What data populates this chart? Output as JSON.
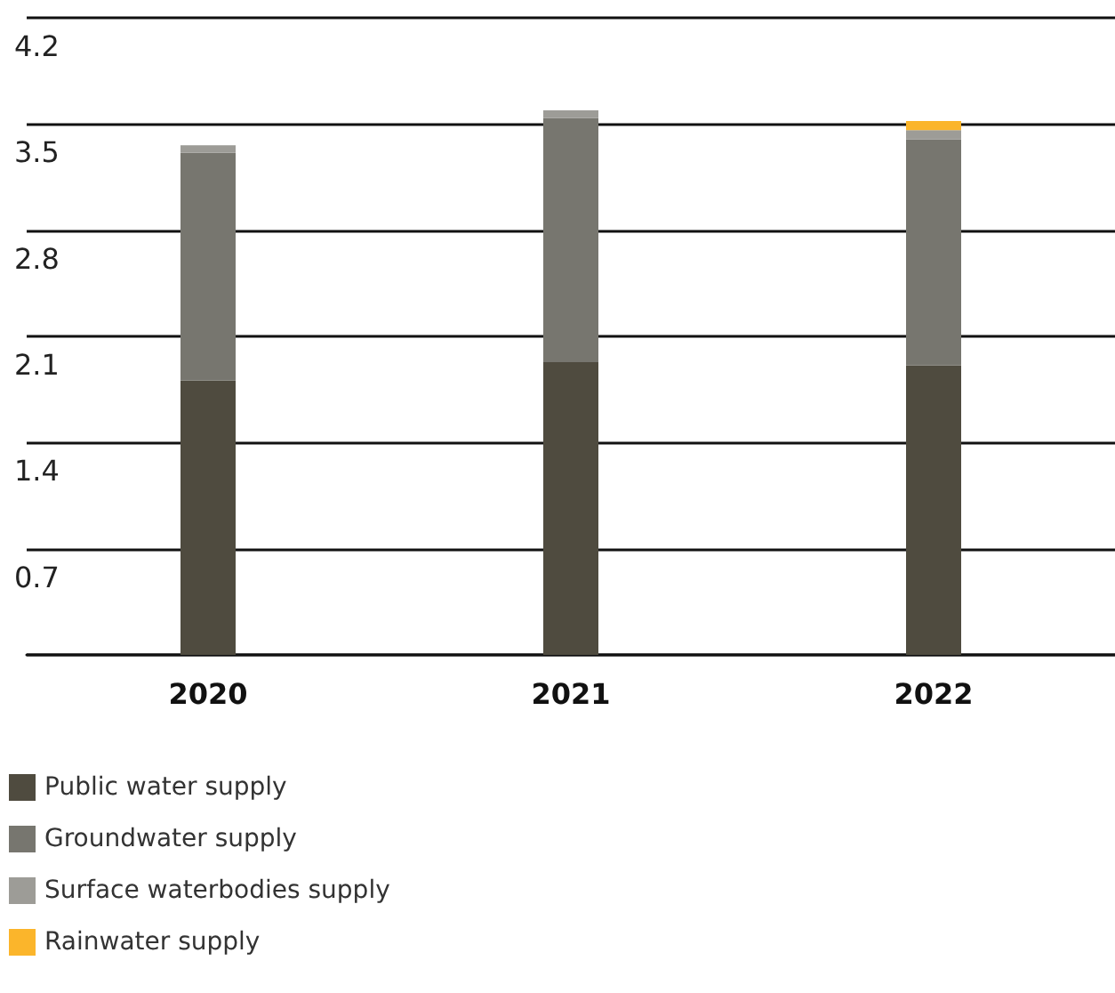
{
  "chart_data": {
    "type": "bar",
    "stacked": true,
    "categories": [
      "2020",
      "2021",
      "2022"
    ],
    "series": [
      {
        "name": "Public water supply",
        "color": "#4f4b3f",
        "values": [
          1.81,
          1.93,
          1.91
        ]
      },
      {
        "name": "Groundwater supply",
        "color": "#77766f",
        "values": [
          1.5,
          1.61,
          1.49
        ]
      },
      {
        "name": "Surface waterbodies supply",
        "color": "#9d9c97",
        "values": [
          0.05,
          0.05,
          0.06
        ]
      },
      {
        "name": "Rainwater supply",
        "color": "#fbb52b",
        "values": [
          0,
          0,
          0.06
        ]
      }
    ],
    "ylim": [
      0,
      4.2
    ],
    "yticks": [
      {
        "value": 0,
        "label": null
      },
      0.7,
      1.4,
      2.1,
      2.8,
      3.5,
      4.2
    ],
    "grid": "y",
    "legend": "bottom left"
  }
}
